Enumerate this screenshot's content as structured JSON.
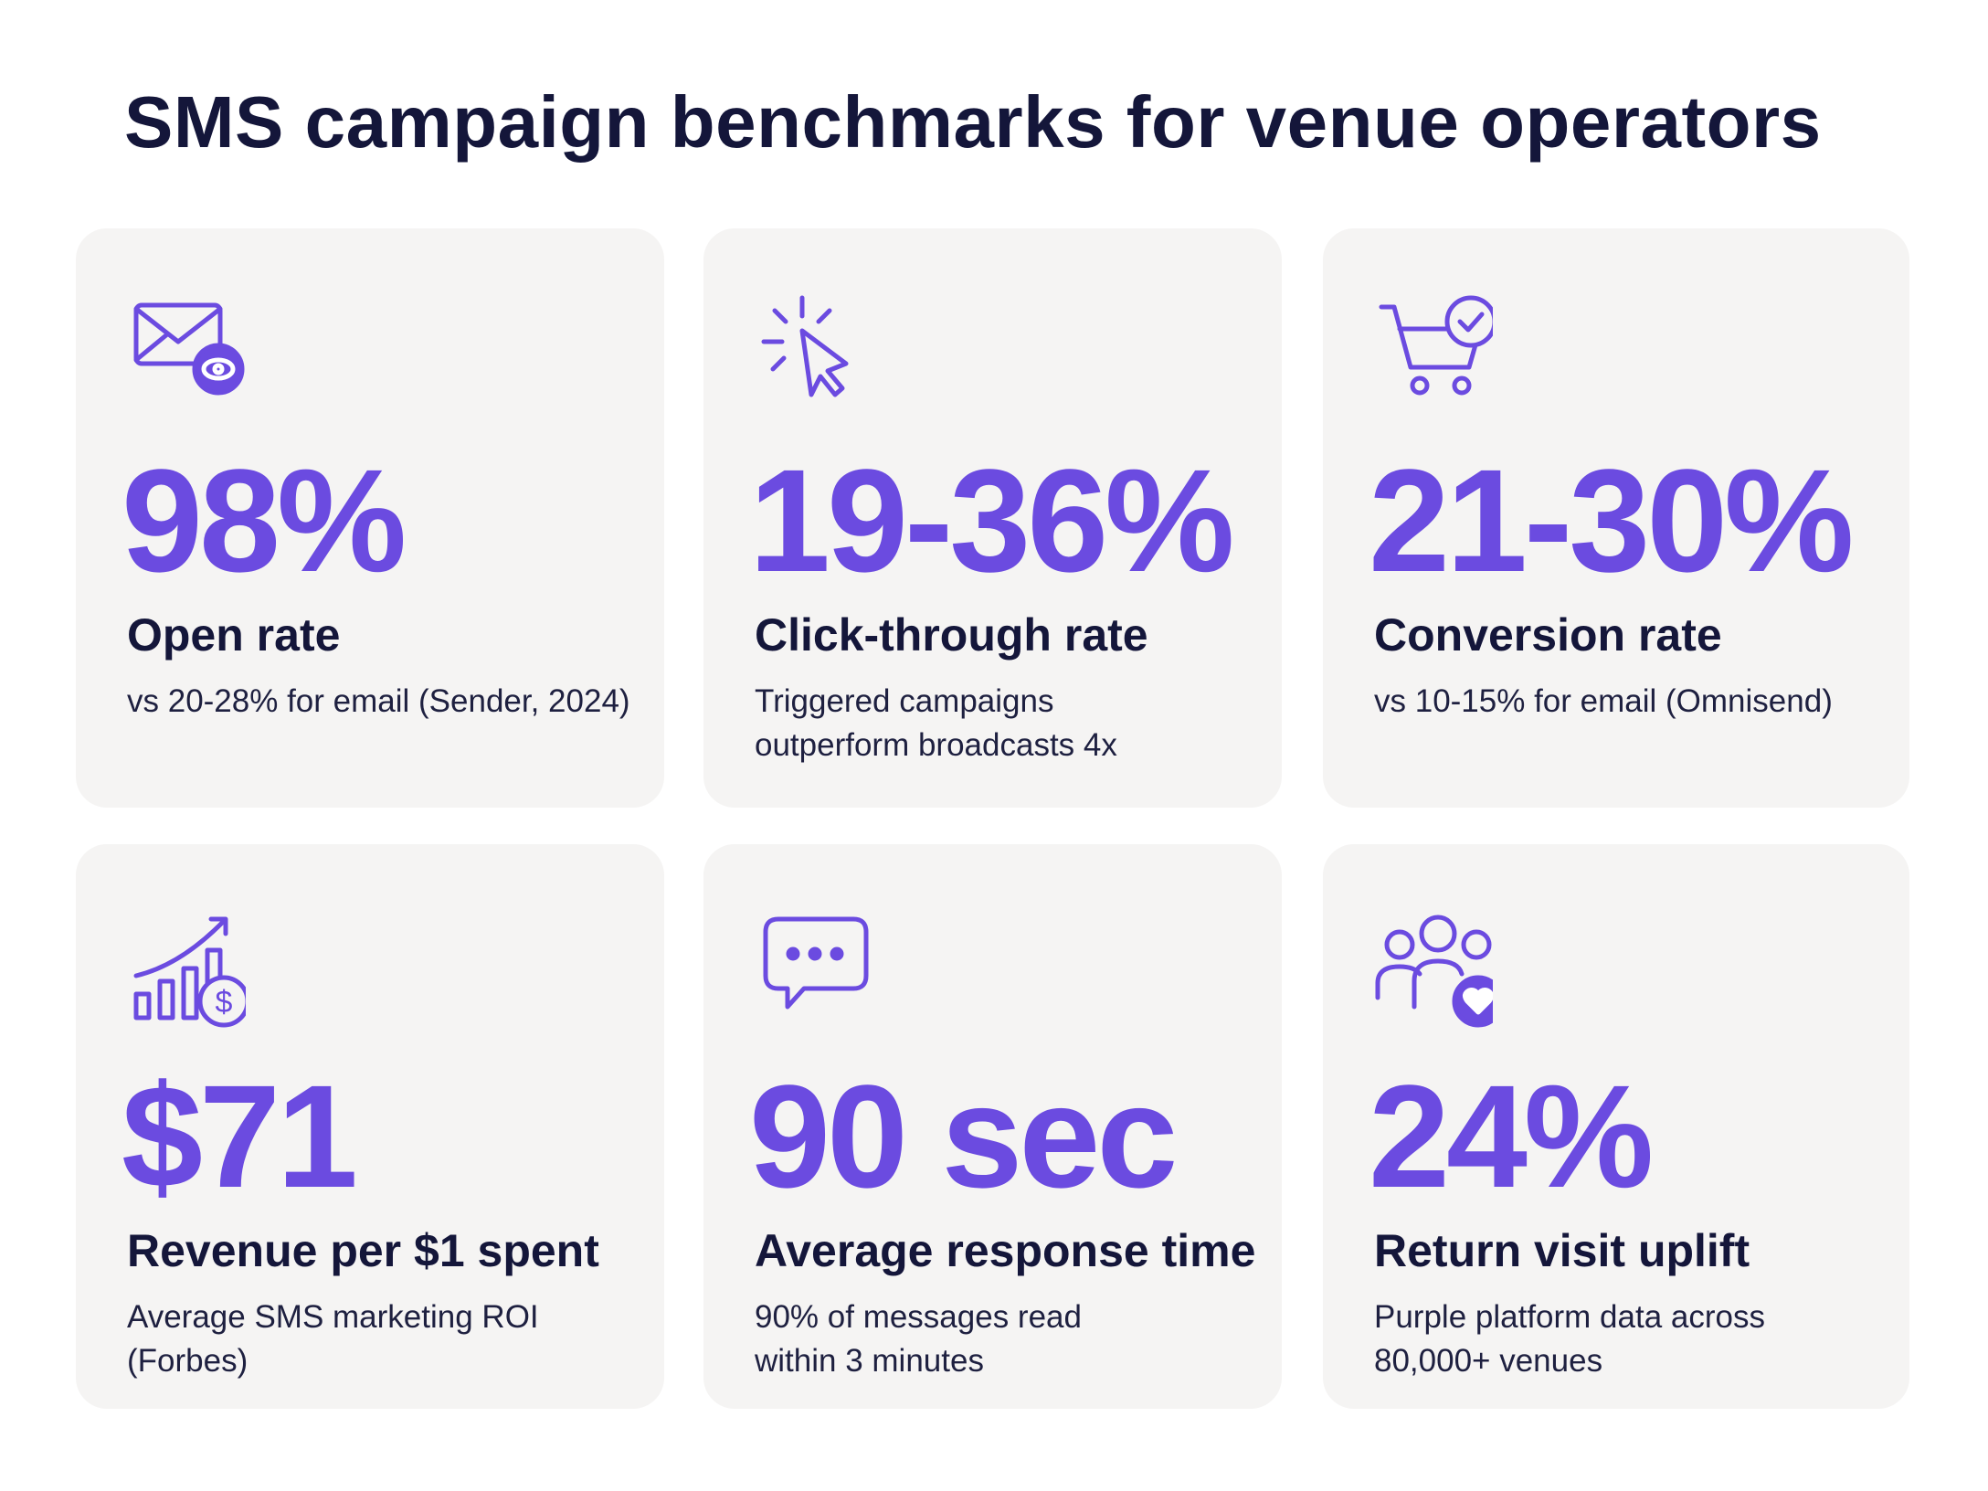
{
  "header": {
    "title": "SMS campaign benchmarks for venue operators"
  },
  "cards": [
    {
      "stat": "98%",
      "label": "Open rate",
      "description": [
        "vs 20-28% for email (Sender, 2024)"
      ]
    },
    {
      "stat": "19-36%",
      "label": "Click-through rate",
      "description": [
        "Triggered campaigns",
        "outperform broadcasts 4x"
      ]
    },
    {
      "stat": "21-30%",
      "label": "Conversion rate",
      "description": [
        "vs 10-15% for email (Omnisend)"
      ]
    },
    {
      "stat": "$71",
      "label": "Revenue per $1 spent",
      "description": [
        "Average SMS marketing ROI",
        "(Forbes)"
      ]
    },
    {
      "stat": "90 sec",
      "label": "Average response time",
      "description": [
        "90% of messages read",
        "within 3 minutes"
      ]
    },
    {
      "stat": "24%",
      "label": "Return visit uplift",
      "description": [
        "Purple platform data across",
        "80,000+ venues"
      ]
    }
  ]
}
